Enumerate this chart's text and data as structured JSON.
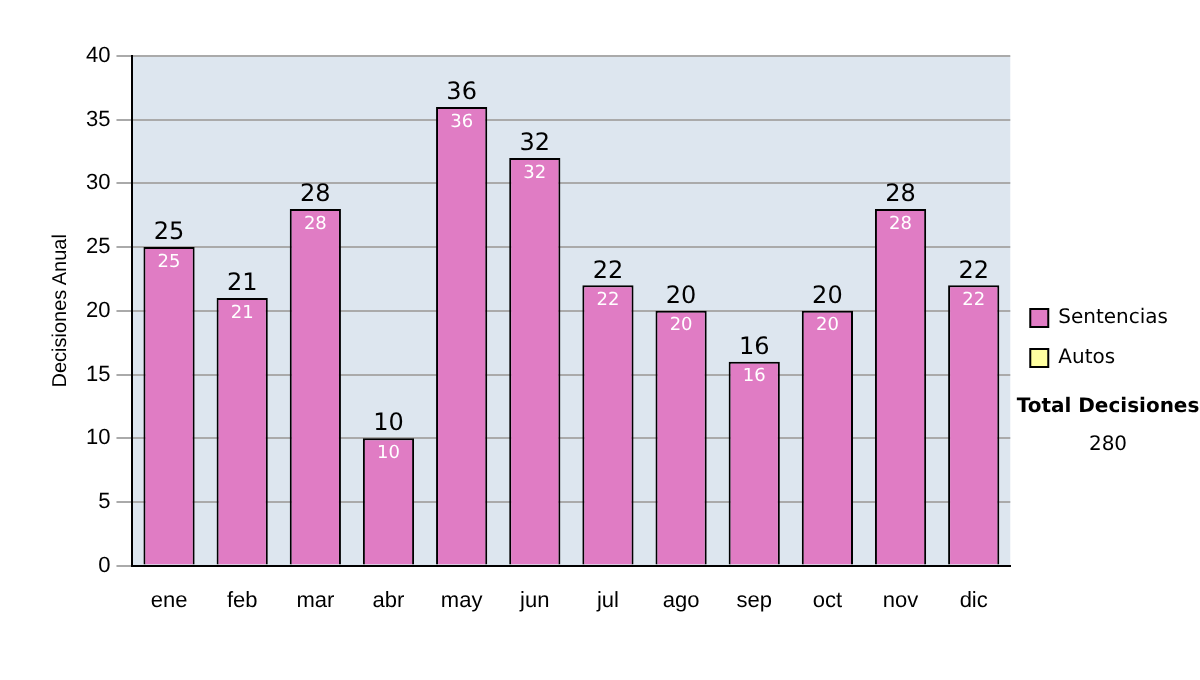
{
  "chart_data": {
    "type": "bar",
    "ylabel": "Decisiones Anual",
    "categories": [
      "ene",
      "feb",
      "mar",
      "abr",
      "may",
      "jun",
      "jul",
      "ago",
      "sep",
      "oct",
      "nov",
      "dic"
    ],
    "series": [
      {
        "name": "Sentencias",
        "color": "#e07cc4",
        "values": [
          25,
          21,
          28,
          10,
          36,
          32,
          22,
          20,
          16,
          20,
          28,
          22
        ],
        "value_labels": [
          "25",
          "21",
          "28",
          "10",
          "36",
          "32",
          "22",
          "20",
          "16",
          "20",
          "28",
          "22"
        ]
      },
      {
        "name": "Autos",
        "color": "#ffffa0",
        "values": [
          0,
          0,
          0,
          0,
          0,
          0,
          0,
          0,
          0,
          0,
          0,
          0
        ]
      }
    ],
    "stacked": true,
    "totals": [
      "25",
      "21",
      "28",
      "10",
      "36",
      "32",
      "22",
      "20",
      "16",
      "20",
      "28",
      "22"
    ],
    "ylim": [
      0,
      40
    ],
    "yticks": [
      0,
      5,
      10,
      15,
      20,
      25,
      30,
      35,
      40
    ],
    "grid": "y",
    "legend": "right",
    "annotations": [
      "Total Decisiones",
      "280"
    ]
  }
}
